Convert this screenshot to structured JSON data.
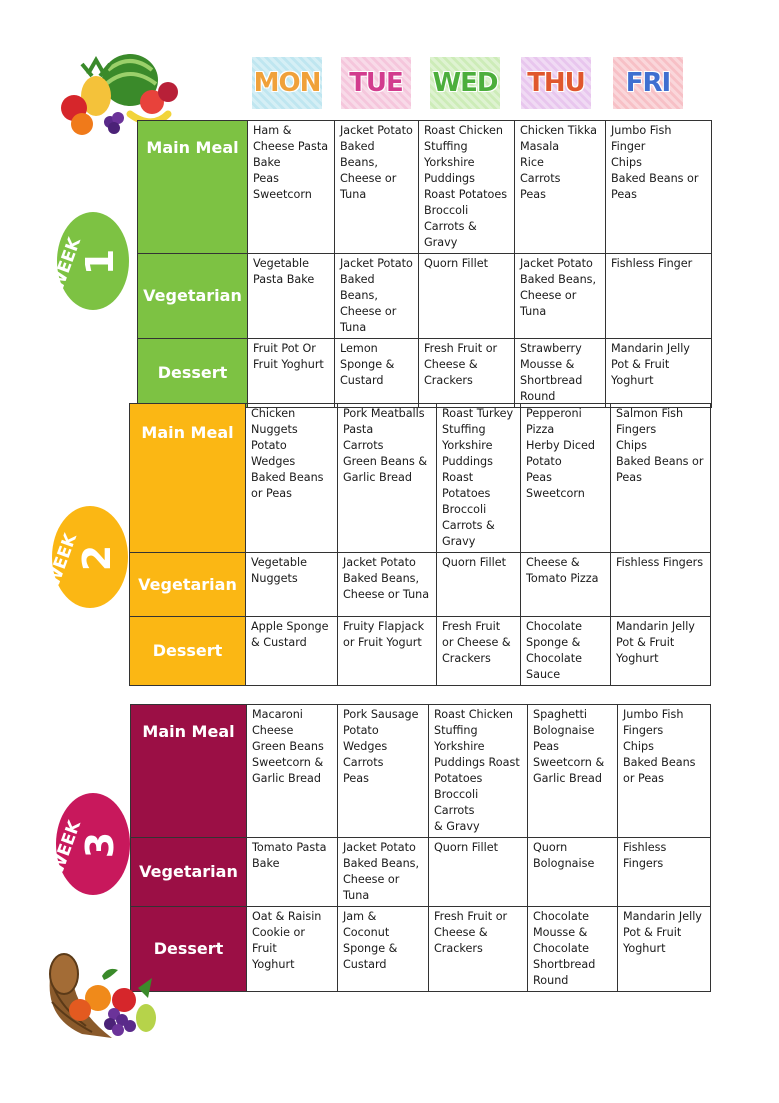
{
  "days": [
    {
      "label": "MON",
      "color": "#f0a13a",
      "bg": "#bfe6f0"
    },
    {
      "label": "TUE",
      "color": "#d23c8e",
      "bg": "#f5c6dc"
    },
    {
      "label": "WED",
      "color": "#4cae3c",
      "bg": "#cdecb8"
    },
    {
      "label": "THU",
      "color": "#e0572e",
      "bg": "#e8c6ee"
    },
    {
      "label": "FRI",
      "color": "#3f6fd0",
      "bg": "#f7c0c6"
    }
  ],
  "weeks": [
    {
      "badge_word": "WEEK",
      "badge_number": "1",
      "color": "#7dc243",
      "rows": [
        {
          "label": "Main Meal",
          "cells": [
            "Ham &\nCheese Pasta\nBake\nPeas\nSweetcorn",
            "Jacket Potato\nBaked Beans,\nCheese or\nTuna",
            "Roast Chicken\nStuffing\nYorkshire\nPuddings\nRoast Potatoes\nBroccoli\nCarrots &\nGravy",
            "Chicken Tikka\nMasala\nRice\nCarrots\nPeas",
            "Jumbo Fish\nFinger\nChips\nBaked Beans or\nPeas"
          ]
        },
        {
          "label": "Vegetarian",
          "cells": [
            "Vegetable\nPasta Bake",
            "Jacket Potato\nBaked Beans,\nCheese or\nTuna",
            "Quorn Fillet",
            "Jacket Potato\nBaked Beans,\nCheese or\nTuna",
            "Fishless Finger"
          ]
        },
        {
          "label": "Dessert",
          "cells": [
            "Fruit Pot Or\nFruit Yoghurt",
            "Lemon\nSponge &\nCustard",
            "Fresh Fruit or\nCheese &\nCrackers",
            "Strawberry\nMousse &\nShortbread\nRound",
            "Mandarin Jelly\nPot & Fruit\nYoghurt"
          ]
        }
      ]
    },
    {
      "badge_word": "WEEK",
      "badge_number": "2",
      "color": "#fbb714",
      "rows": [
        {
          "label": "Main Meal",
          "cells": [
            "Chicken\nNuggets\nPotato\nWedges\nBaked Beans\nor Peas",
            "Pork Meatballs\nPasta\nCarrots\nGreen Beans &\nGarlic Bread",
            "Roast Turkey\nStuffing\nYorkshire\nPuddings\nRoast\nPotatoes\nBroccoli\nCarrots &\nGravy",
            "Pepperoni\nPizza\nHerby Diced\nPotato\nPeas\nSweetcorn",
            "Salmon Fish\nFingers\nChips\nBaked Beans or\nPeas"
          ]
        },
        {
          "label": "Vegetarian",
          "cells": [
            "Vegetable\nNuggets",
            "Jacket Potato\nBaked Beans,\nCheese or Tuna",
            "Quorn Fillet",
            "Cheese &\nTomato Pizza",
            "Fishless Fingers"
          ]
        },
        {
          "label": "Dessert",
          "cells": [
            "Apple Sponge\n& Custard",
            "Fruity Flapjack\nor Fruit Yogurt",
            "Fresh Fruit\nor Cheese &\nCrackers",
            "Chocolate\nSponge &\nChocolate\nSauce",
            "Mandarin Jelly\nPot & Fruit\nYoghurt"
          ]
        }
      ]
    },
    {
      "badge_word": "WEEK",
      "badge_number": "3",
      "color": "#9b0f45",
      "badge_color": "#c8185c",
      "rows": [
        {
          "label": "Main Meal",
          "cells": [
            "Macaroni\nCheese\nGreen Beans\nSweetcorn &\nGarlic Bread",
            "Pork Sausage\nPotato\nWedges\nCarrots\nPeas",
            "Roast Chicken\nStuffing\nYorkshire\nPuddings Roast\nPotatoes\nBroccoli Carrots\n& Gravy",
            "Spaghetti\nBolognaise\nPeas\nSweetcorn &\nGarlic Bread",
            "Jumbo Fish\nFingers\nChips\nBaked Beans\nor Peas"
          ]
        },
        {
          "label": "Vegetarian",
          "cells": [
            "Tomato Pasta\nBake",
            "Jacket Potato\nBaked Beans,\nCheese or\nTuna",
            "Quorn Fillet",
            "Quorn\nBolognaise",
            "Fishless\nFingers"
          ]
        },
        {
          "label": "Dessert",
          "cells": [
            "Oat & Raisin\nCookie or Fruit\nYoghurt",
            "Jam &\nCoconut\nSponge &\nCustard",
            "Fresh Fruit or\nCheese &\nCrackers",
            "Chocolate\nMousse &\nChocolate\nShortbread\nRound",
            "Mandarin Jelly\nPot & Fruit\nYoghurt"
          ]
        }
      ]
    }
  ]
}
